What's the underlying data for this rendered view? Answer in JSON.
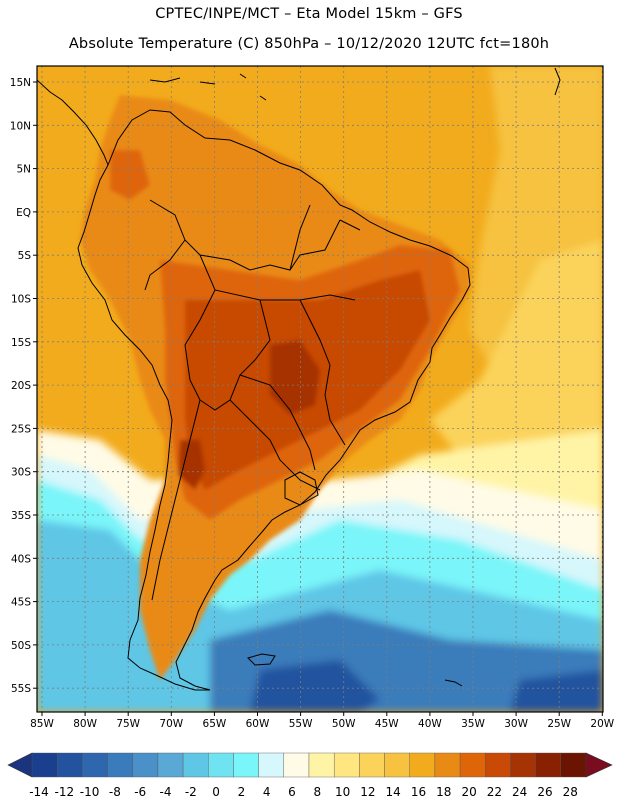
{
  "title_line1": "CPTEC/INPE/MCT –  Eta Model 15km – GFS",
  "title_line2": "Absolute Temperature (C) 850hPa – 10/12/2020 12UTC fct=180h",
  "lat_labels": [
    "15N",
    "10N",
    "5N",
    "EQ",
    "5S",
    "10S",
    "15S",
    "20S",
    "25S",
    "30S",
    "35S",
    "40S",
    "45S",
    "50S",
    "55S"
  ],
  "lon_labels": [
    "85W",
    "80W",
    "75W",
    "70W",
    "65W",
    "60W",
    "55W",
    "50W",
    "45W",
    "40W",
    "35W",
    "30W",
    "25W",
    "20W"
  ],
  "colorbar": {
    "labels": [
      "-14",
      "-12",
      "-10",
      "-8",
      "-6",
      "-4",
      "-2",
      "0",
      "2",
      "4",
      "6",
      "8",
      "10",
      "12",
      "14",
      "16",
      "18",
      "20",
      "22",
      "24",
      "26",
      "28"
    ],
    "colors": [
      "#1b3f8f",
      "#23539f",
      "#2e67ad",
      "#3a7cbb",
      "#4a90c9",
      "#5aa8d6",
      "#5fc6e6",
      "#6fe3f2",
      "#7af5f9",
      "#d6f7fb",
      "#fffbe6",
      "#fff4a6",
      "#ffe680",
      "#fbd35a",
      "#f6c23f",
      "#f2ab1c",
      "#e98a14",
      "#df6509",
      "#c84a06",
      "#a63304",
      "#872102",
      "#6b1401"
    ],
    "low_color": "#1a3480",
    "high_color": "#7a0c20"
  },
  "colors": {
    "ocean_warm": "#f2ab1c",
    "ocean_mid": "#f6c23f",
    "ocean_cool": "#fbd35a",
    "pale": "#fff4a6",
    "cream": "#fffbe6",
    "light_cyan": "#d6f7fb",
    "cyan": "#7af5f9",
    "sky": "#5fc6e6",
    "blue": "#3a7cbb",
    "deep_blue": "#23539f",
    "land_warm": "#e98a14",
    "land_hot": "#df6509",
    "land_hotter": "#c84a06",
    "land_hottest": "#a63304",
    "coast": "#000000",
    "grid": "#7d7d7d"
  }
}
